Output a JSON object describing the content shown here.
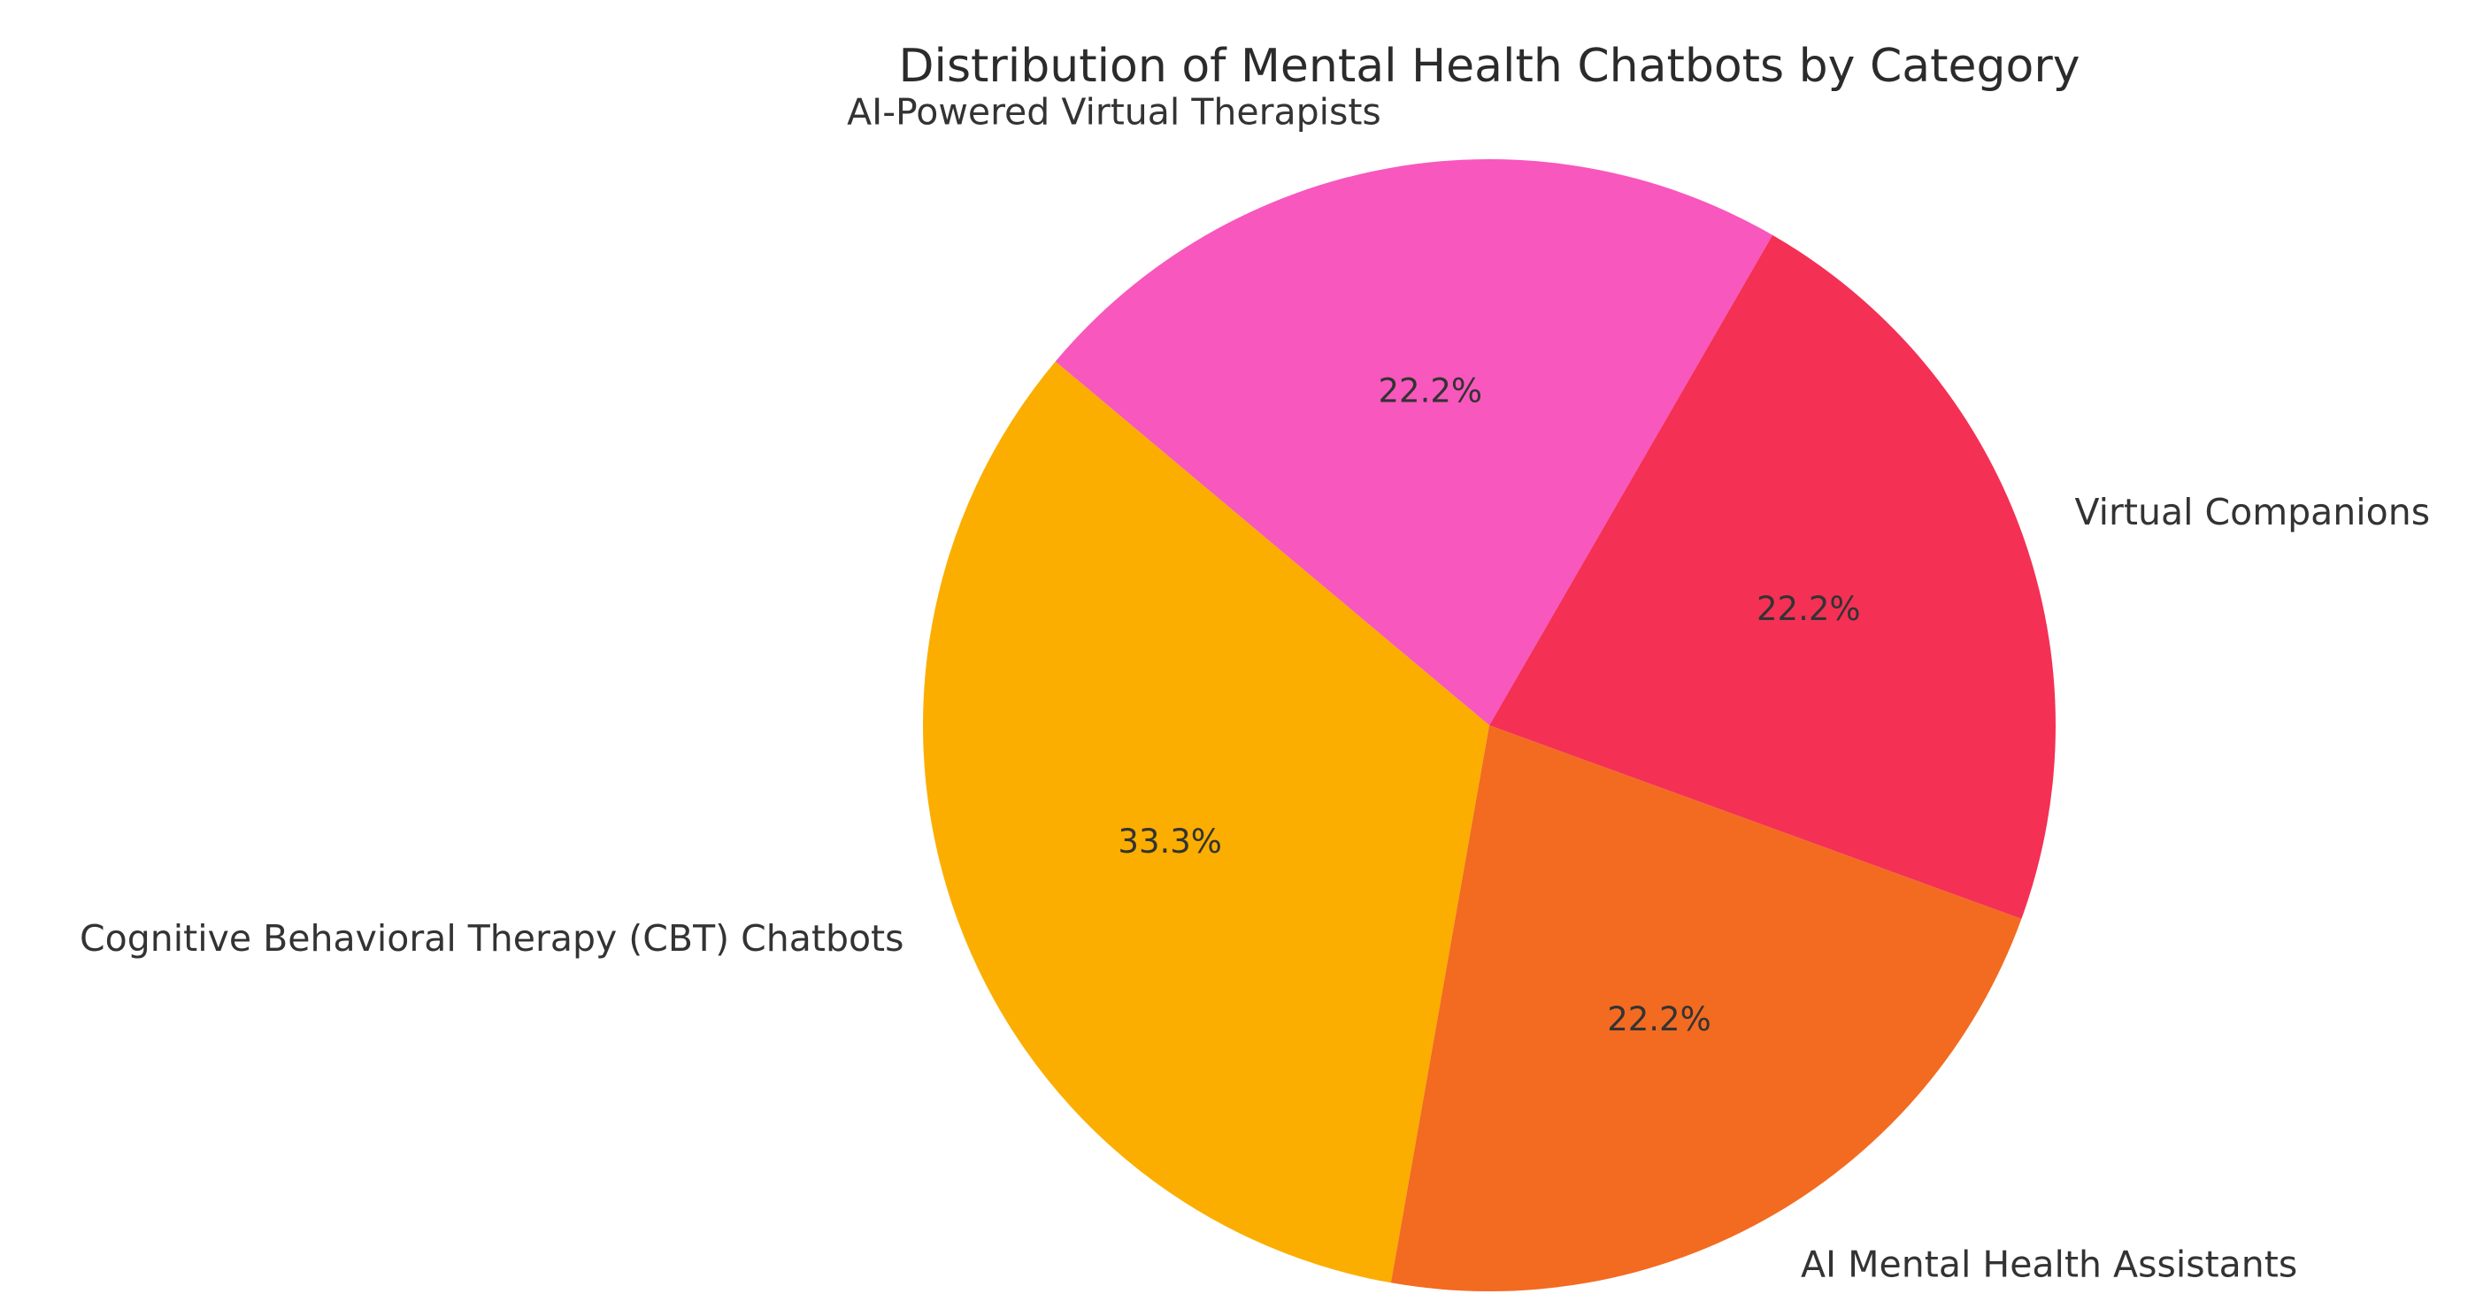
{
  "chart_data": {
    "type": "pie",
    "title": "Distribution of Mental Health Chatbots by Category",
    "slices": [
      {
        "label": "Cognitive Behavioral Therapy (CBT) Chatbots",
        "value": 33.3,
        "display": "33.3%",
        "color": "#FBAE00"
      },
      {
        "label": "AI Mental Health Assistants",
        "value": 22.2,
        "display": "22.2%",
        "color": "#F26B21"
      },
      {
        "label": "Virtual Companions",
        "value": 22.2,
        "display": "22.2%",
        "color": "#F43055"
      },
      {
        "label": "AI-Powered Virtual Therapists",
        "value": 22.2,
        "display": "22.2%",
        "color": "#F857BD"
      }
    ],
    "start_angle_deg": 140,
    "direction": "counterclockwise",
    "legend": "none"
  }
}
